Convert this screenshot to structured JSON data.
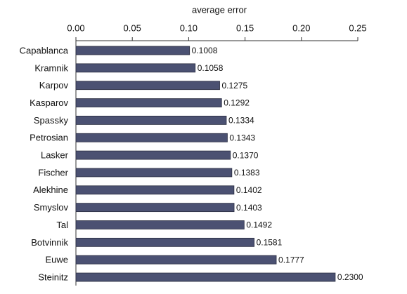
{
  "chart_data": {
    "type": "bar",
    "orientation": "horizontal",
    "x_label": "average error",
    "categories": [
      "Capablanca",
      "Kramnik",
      "Karpov",
      "Kasparov",
      "Spassky",
      "Petrosian",
      "Lasker",
      "Fischer",
      "Alekhine",
      "Smyslov",
      "Tal",
      "Botvinnik",
      "Euwe",
      "Steinitz"
    ],
    "values": [
      0.1008,
      0.1058,
      0.1275,
      0.1292,
      0.1334,
      0.1343,
      0.137,
      0.1383,
      0.1402,
      0.1403,
      0.1492,
      0.1581,
      0.1777,
      0.23
    ],
    "value_labels": [
      "0.1008",
      "0.1058",
      "0.1275",
      "0.1292",
      "0.1334",
      "0.1343",
      "0.1370",
      "0.1383",
      "0.1402",
      "0.1403",
      "0.1492",
      "0.1581",
      "0.1777",
      "0.2300"
    ],
    "color": "#4b5172",
    "xlim": [
      0,
      0.25
    ],
    "xticks": [
      {
        "value": 0,
        "label": "0.00"
      },
      0.05,
      {
        "value": 0.1,
        "label": "0.10"
      },
      0.15,
      {
        "value": 0.2,
        "label": "0.20"
      },
      0.25
    ]
  }
}
